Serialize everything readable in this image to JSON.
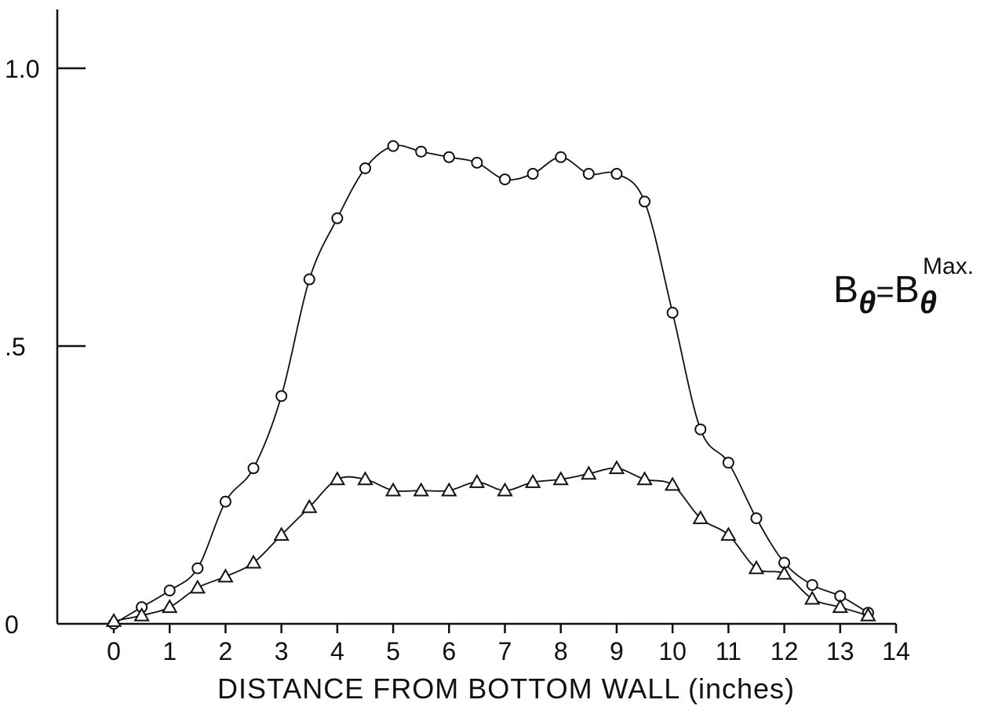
{
  "chart_data": {
    "type": "line",
    "title": "",
    "xlabel": "DISTANCE FROM BOTTOM WALL (inches)",
    "ylabel": "",
    "xlim": [
      0,
      14
    ],
    "ylim": [
      0,
      1.0
    ],
    "xticks": [
      0,
      1,
      2,
      3,
      4,
      5,
      6,
      7,
      8,
      9,
      10,
      11,
      12,
      13,
      14
    ],
    "xtick_labels": [
      "0",
      "1",
      "2",
      "3",
      "4",
      "5",
      "6",
      "7",
      "8",
      "9",
      "10",
      "11",
      "12",
      "13",
      "14"
    ],
    "yticks": [
      0,
      0.5,
      1.0
    ],
    "ytick_labels": [
      "0",
      ".5",
      "1.0"
    ],
    "grid": false,
    "annotation": {
      "base": "B",
      "subscript": "θ",
      "equals": "=",
      "base2": "B",
      "subscript2": "θ",
      "superscript2": "Max."
    },
    "series": [
      {
        "marker": "circle",
        "x": [
          0,
          0.5,
          1,
          1.5,
          2,
          2.5,
          3,
          3.5,
          4,
          4.5,
          5,
          5.5,
          6,
          6.5,
          7,
          7.5,
          8,
          8.5,
          9,
          9.5,
          10,
          10.5,
          11,
          11.5,
          12,
          12.5,
          13,
          13.5
        ],
        "y": [
          0.0,
          0.03,
          0.06,
          0.1,
          0.22,
          0.28,
          0.41,
          0.62,
          0.73,
          0.82,
          0.86,
          0.85,
          0.84,
          0.83,
          0.8,
          0.81,
          0.84,
          0.81,
          0.81,
          0.76,
          0.56,
          0.35,
          0.29,
          0.19,
          0.11,
          0.07,
          0.05,
          0.02
        ]
      },
      {
        "marker": "triangle",
        "x": [
          0,
          0.5,
          1,
          1.5,
          2,
          2.5,
          3,
          3.5,
          4,
          4.5,
          5,
          5.5,
          6,
          6.5,
          7,
          7.5,
          8,
          8.5,
          9,
          9.5,
          10,
          10.5,
          11,
          11.5,
          12,
          12.5,
          13,
          13.5
        ],
        "y": [
          0.005,
          0.015,
          0.03,
          0.065,
          0.085,
          0.11,
          0.16,
          0.21,
          0.26,
          0.26,
          0.24,
          0.24,
          0.24,
          0.255,
          0.24,
          0.255,
          0.26,
          0.27,
          0.28,
          0.26,
          0.25,
          0.19,
          0.16,
          0.1,
          0.09,
          0.045,
          0.03,
          0.015
        ]
      }
    ]
  }
}
